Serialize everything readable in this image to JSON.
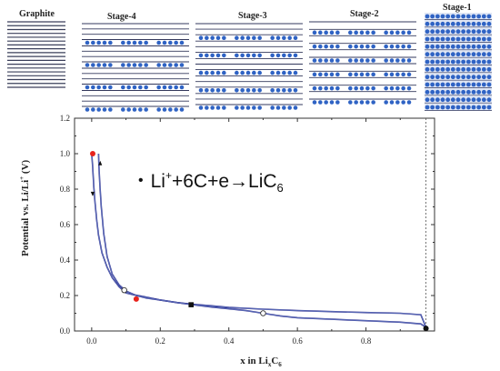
{
  "stages": [
    {
      "label": "Graphite",
      "layers": 0
    },
    {
      "label": "Stage-4",
      "layers": 4
    },
    {
      "label": "Stage-3",
      "layers": 3
    },
    {
      "label": "Stage-2",
      "layers": 2
    },
    {
      "label": "Stage-1",
      "layers": 1
    }
  ],
  "equation": {
    "bullet": "•",
    "li": "Li",
    "li_charge": "+",
    "rest": "+6C+e→LiC",
    "subscript": "6"
  },
  "y_title": {
    "main": "Potential vs. Li/Li",
    "sup": "+",
    "unit": " (V)"
  },
  "x_title": {
    "main": "x in Li",
    "sub1": "x",
    "mid": "C",
    "sub2": "6"
  },
  "colors": {
    "curve": "#2e3192",
    "curve_inner": "#7f9bd6",
    "graphite_line": "#3a3f5a",
    "layer_line": "#33385c",
    "ion": "#2f63c4",
    "marker_red": "#e8221b",
    "marker_black": "#111111",
    "axis": "#333333"
  },
  "chart_data": {
    "type": "line",
    "xlim": [
      -0.05,
      1.0
    ],
    "ylim": [
      0.0,
      1.2
    ],
    "x_ticks": [
      "0.0",
      "0.2",
      "0.4",
      "0.6",
      "0.8"
    ],
    "y_ticks": [
      "0.0",
      "0.2",
      "0.4",
      "0.6",
      "0.8",
      "1.0",
      "1.2"
    ],
    "x_tick_values": [
      0.0,
      0.2,
      0.4,
      0.6,
      0.8
    ],
    "y_tick_values": [
      0.0,
      0.2,
      0.4,
      0.6,
      0.8,
      1.0,
      1.2
    ],
    "series": [
      {
        "x": [
          0.0,
          0.003,
          0.006,
          0.01,
          0.015,
          0.02,
          0.03,
          0.045,
          0.06,
          0.08,
          0.1,
          0.12,
          0.15,
          0.2,
          0.25,
          0.3,
          0.35,
          0.4,
          0.5,
          0.6,
          0.7,
          0.8,
          0.9,
          0.96,
          0.975
        ],
        "y": [
          1.0,
          0.92,
          0.82,
          0.72,
          0.62,
          0.54,
          0.44,
          0.36,
          0.3,
          0.25,
          0.215,
          0.205,
          0.195,
          0.175,
          0.16,
          0.15,
          0.142,
          0.133,
          0.123,
          0.115,
          0.109,
          0.104,
          0.1,
          0.092,
          0.02
        ]
      },
      {
        "x": [
          0.975,
          0.96,
          0.9,
          0.8,
          0.7,
          0.6,
          0.55,
          0.5,
          0.45,
          0.4,
          0.35,
          0.3,
          0.25,
          0.2,
          0.16,
          0.13,
          0.1,
          0.08,
          0.06,
          0.045,
          0.035,
          0.028,
          0.024,
          0.021,
          0.02
        ],
        "y": [
          0.02,
          0.04,
          0.05,
          0.058,
          0.066,
          0.075,
          0.085,
          0.1,
          0.115,
          0.125,
          0.135,
          0.147,
          0.16,
          0.175,
          0.185,
          0.2,
          0.225,
          0.26,
          0.32,
          0.42,
          0.55,
          0.7,
          0.82,
          0.93,
          1.0
        ]
      }
    ],
    "markers": [
      {
        "x": 0.003,
        "y": 1.0,
        "color": "#e8221b",
        "fill": "solid"
      },
      {
        "x": 0.095,
        "y": 0.23,
        "color": "#333333",
        "fill": "open"
      },
      {
        "x": 0.13,
        "y": 0.18,
        "color": "#e8221b",
        "fill": "solid"
      },
      {
        "x": 0.29,
        "y": 0.148,
        "color": "#111111",
        "fill": "square"
      },
      {
        "x": 0.5,
        "y": 0.1,
        "color": "#333333",
        "fill": "open"
      },
      {
        "x": 0.975,
        "y": 0.015,
        "color": "#111111",
        "fill": "solid"
      }
    ],
    "arrows": [
      {
        "x": 0.003,
        "y": 0.77,
        "direction": "down"
      },
      {
        "x": 0.025,
        "y": 0.95,
        "direction": "up"
      }
    ],
    "dashed_vline": 0.975
  }
}
